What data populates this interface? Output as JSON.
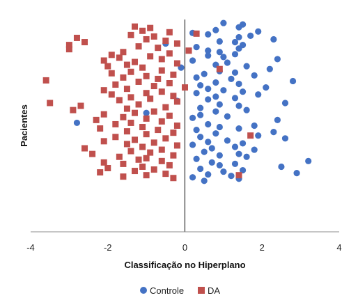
{
  "chart_data": {
    "type": "scatter",
    "xlabel": "Classificação no Hiperplano",
    "ylabel": "Pacientes",
    "xlim": [
      -4,
      4
    ],
    "ylim": [
      0,
      300
    ],
    "x_ticks": [
      "-4",
      "-2",
      "0",
      "2",
      "4"
    ],
    "grid": false,
    "legend": "bottom",
    "series": [
      {
        "name": "Controle",
        "color": "#4472C4",
        "marker": "circle",
        "points": [
          [
            1.0,
            295
          ],
          [
            1.5,
            293
          ],
          [
            1.4,
            289
          ],
          [
            0.8,
            285
          ],
          [
            1.9,
            283
          ],
          [
            0.2,
            281
          ],
          [
            0.6,
            279
          ],
          [
            1.7,
            277
          ],
          [
            1.4,
            275
          ],
          [
            2.3,
            272
          ],
          [
            0.9,
            269
          ],
          [
            1.3,
            268
          ],
          [
            -0.5,
            266
          ],
          [
            1.5,
            264
          ],
          [
            0.3,
            261
          ],
          [
            1.4,
            259
          ],
          [
            0.6,
            256
          ],
          [
            0.9,
            254
          ],
          [
            1.3,
            251
          ],
          [
            0.6,
            249
          ],
          [
            1.0,
            247
          ],
          [
            2.4,
            244
          ],
          [
            0.2,
            242
          ],
          [
            1.1,
            239
          ],
          [
            0.8,
            236
          ],
          [
            1.6,
            234
          ],
          [
            -0.1,
            232
          ],
          [
            2.2,
            230
          ],
          [
            0.9,
            227
          ],
          [
            1.3,
            225
          ],
          [
            0.5,
            223
          ],
          [
            1.8,
            221
          ],
          [
            0.3,
            218
          ],
          [
            1.2,
            216
          ],
          [
            2.8,
            213
          ],
          [
            0.8,
            211
          ],
          [
            1.4,
            209
          ],
          [
            0.4,
            207
          ],
          [
            2.1,
            204
          ],
          [
            0.6,
            202
          ],
          [
            1.0,
            200
          ],
          [
            1.5,
            198
          ],
          [
            0.3,
            196
          ],
          [
            1.9,
            194
          ],
          [
            0.8,
            191
          ],
          [
            1.3,
            189
          ],
          [
            0.6,
            187
          ],
          [
            -0.2,
            185
          ],
          [
            2.6,
            182
          ],
          [
            0.9,
            180
          ],
          [
            1.4,
            178
          ],
          [
            0.4,
            175
          ],
          [
            1.6,
            172
          ],
          [
            0.8,
            170
          ],
          [
            -1.0,
            168
          ],
          [
            0.4,
            165
          ],
          [
            1.1,
            163
          ],
          [
            0.2,
            161
          ],
          [
            2.4,
            158
          ],
          [
            -2.8,
            154
          ],
          [
            0.6,
            152
          ],
          [
            1.8,
            150
          ],
          [
            0.9,
            148
          ],
          [
            1.4,
            146
          ],
          [
            0.3,
            144
          ],
          [
            2.3,
            141
          ],
          [
            0.8,
            139
          ],
          [
            1.9,
            136
          ],
          [
            0.4,
            134
          ],
          [
            2.6,
            132
          ],
          [
            1.1,
            129
          ],
          [
            0.6,
            127
          ],
          [
            1.5,
            125
          ],
          [
            0.2,
            123
          ],
          [
            1.3,
            120
          ],
          [
            0.7,
            118
          ],
          [
            1.8,
            116
          ],
          [
            0.5,
            113
          ],
          [
            1.4,
            110
          ],
          [
            0.9,
            108
          ],
          [
            1.6,
            106
          ],
          [
            0.3,
            103
          ],
          [
            3.2,
            100
          ],
          [
            0.7,
            98
          ],
          [
            1.3,
            96
          ],
          [
            0.9,
            94
          ],
          [
            2.5,
            92
          ],
          [
            0.4,
            89
          ],
          [
            1.5,
            87
          ],
          [
            1.0,
            85
          ],
          [
            2.9,
            83
          ],
          [
            0.6,
            81
          ],
          [
            1.2,
            79
          ],
          [
            0.2,
            77
          ],
          [
            1.4,
            75
          ],
          [
            0.5,
            72
          ]
        ]
      },
      {
        "name": "DA",
        "color": "#C0504D",
        "marker": "square",
        "points": [
          [
            -1.3,
            290
          ],
          [
            -0.9,
            288
          ],
          [
            -1.1,
            284
          ],
          [
            -0.4,
            282
          ],
          [
            0.3,
            280
          ],
          [
            -1.4,
            278
          ],
          [
            -0.8,
            276
          ],
          [
            -2.8,
            274
          ],
          [
            -1.0,
            272
          ],
          [
            -0.5,
            270
          ],
          [
            -2.6,
            268
          ],
          [
            -0.2,
            266
          ],
          [
            -3.0,
            264
          ],
          [
            -1.2,
            262
          ],
          [
            -0.7,
            260
          ],
          [
            -3.0,
            258
          ],
          [
            0.1,
            256
          ],
          [
            -1.6,
            254
          ],
          [
            -0.4,
            252
          ],
          [
            -1.9,
            250
          ],
          [
            -0.9,
            248
          ],
          [
            -1.7,
            246
          ],
          [
            -0.6,
            244
          ],
          [
            -2.1,
            242
          ],
          [
            -1.3,
            240
          ],
          [
            -0.2,
            238
          ],
          [
            -1.5,
            236
          ],
          [
            -2.0,
            234
          ],
          [
            -1.1,
            232
          ],
          [
            0.9,
            230
          ],
          [
            -0.6,
            228
          ],
          [
            -1.4,
            226
          ],
          [
            -1.9,
            224
          ],
          [
            -0.3,
            222
          ],
          [
            -1.0,
            220
          ],
          [
            -1.6,
            218
          ],
          [
            -0.7,
            216
          ],
          [
            -3.6,
            214
          ],
          [
            -1.2,
            212
          ],
          [
            -0.4,
            210
          ],
          [
            -1.8,
            208
          ],
          [
            -0.8,
            206
          ],
          [
            0.0,
            204
          ],
          [
            -1.5,
            202
          ],
          [
            -2.1,
            200
          ],
          [
            -0.6,
            198
          ],
          [
            -1.0,
            196
          ],
          [
            -1.9,
            194
          ],
          [
            -0.3,
            192
          ],
          [
            -1.4,
            190
          ],
          [
            -0.9,
            188
          ],
          [
            -1.7,
            186
          ],
          [
            -0.2,
            184
          ],
          [
            -3.5,
            182
          ],
          [
            -1.2,
            180
          ],
          [
            -2.7,
            178
          ],
          [
            -0.5,
            176
          ],
          [
            -1.5,
            174
          ],
          [
            -2.9,
            172
          ],
          [
            -0.8,
            170
          ],
          [
            -1.3,
            168
          ],
          [
            -2.1,
            166
          ],
          [
            -0.4,
            164
          ],
          [
            -1.6,
            162
          ],
          [
            -1.0,
            160
          ],
          [
            -2.3,
            158
          ],
          [
            -0.6,
            156
          ],
          [
            -1.4,
            154
          ],
          [
            -1.8,
            152
          ],
          [
            -0.2,
            150
          ],
          [
            -1.1,
            148
          ],
          [
            -2.2,
            146
          ],
          [
            -0.7,
            144
          ],
          [
            -1.5,
            142
          ],
          [
            -0.3,
            140
          ],
          [
            -1.0,
            138
          ],
          [
            1.7,
            136
          ],
          [
            -1.8,
            134
          ],
          [
            -0.5,
            132
          ],
          [
            -1.3,
            130
          ],
          [
            -2.1,
            128
          ],
          [
            -0.8,
            126
          ],
          [
            -1.5,
            124
          ],
          [
            -0.2,
            122
          ],
          [
            -1.1,
            120
          ],
          [
            -2.6,
            118
          ],
          [
            -0.6,
            116
          ],
          [
            -1.4,
            114
          ],
          [
            -0.9,
            112
          ],
          [
            -2.4,
            110
          ],
          [
            -0.3,
            108
          ],
          [
            -1.7,
            106
          ],
          [
            -1.0,
            104
          ],
          [
            -1.2,
            102
          ],
          [
            -0.6,
            100
          ],
          [
            -2.1,
            98
          ],
          [
            -1.6,
            96
          ],
          [
            -0.4,
            94
          ],
          [
            -1.1,
            92
          ],
          [
            -2.0,
            90
          ],
          [
            -0.8,
            88
          ],
          [
            -1.3,
            86
          ],
          [
            -2.2,
            84
          ],
          [
            -0.5,
            82
          ],
          [
            -1.0,
            80
          ],
          [
            1.4,
            80
          ],
          [
            -1.6,
            78
          ],
          [
            -0.3,
            76
          ]
        ]
      }
    ]
  }
}
